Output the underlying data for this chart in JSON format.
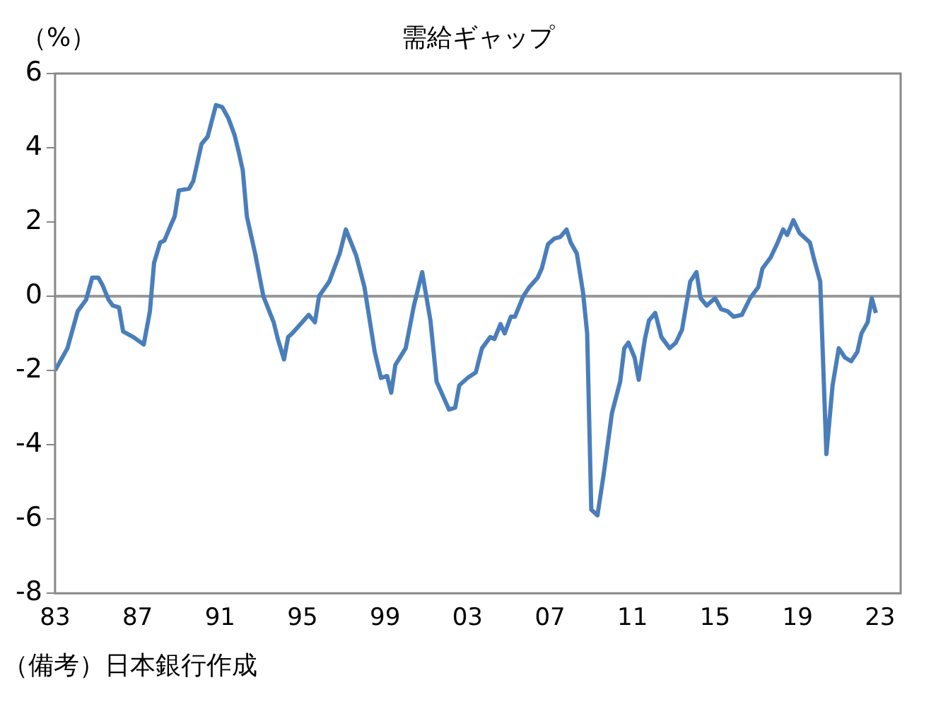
{
  "chart_data": {
    "type": "line",
    "title": "需給ギャップ",
    "ylabel": "（%）",
    "annotations": [
      "（備考）日本銀行作成"
    ],
    "xlim": [
      1983,
      2024
    ],
    "xticks": [
      {
        "value": 1983,
        "label": "83"
      },
      {
        "value": 1987,
        "label": "87"
      },
      {
        "value": 1991,
        "label": "91"
      },
      {
        "value": 1995,
        "label": "95"
      },
      {
        "value": 1999,
        "label": "99"
      },
      {
        "value": 2003,
        "label": "03"
      },
      {
        "value": 2007,
        "label": "07"
      },
      {
        "value": 2011,
        "label": "11"
      },
      {
        "value": 2015,
        "label": "15"
      },
      {
        "value": 2019,
        "label": "19"
      },
      {
        "value": 2023,
        "label": "23"
      }
    ],
    "ylim": [
      -8,
      6
    ],
    "yticks": [
      -8,
      -6,
      -4,
      -2,
      0,
      2,
      4,
      6
    ],
    "grid": false,
    "legend": false,
    "marker": "none",
    "line_style": "solid",
    "ref_lines": [
      {
        "axis": "y",
        "value": 0,
        "color": "#999999"
      }
    ],
    "series": [
      {
        "color": "#4a7ebb",
        "x": [
          1983.0,
          1983.6,
          1984.1,
          1984.5,
          1984.8,
          1985.1,
          1985.3,
          1985.6,
          1985.8,
          1986.1,
          1986.3,
          1986.8,
          1987.3,
          1987.6,
          1987.8,
          1988.1,
          1988.3,
          1988.6,
          1988.8,
          1989.0,
          1989.5,
          1989.7,
          1990.1,
          1990.4,
          1990.8,
          1991.1,
          1991.4,
          1991.7,
          1991.9,
          1992.1,
          1992.3,
          1992.7,
          1993.1,
          1993.6,
          1993.8,
          1994.1,
          1994.3,
          1994.5,
          1994.9,
          1995.3,
          1995.6,
          1995.8,
          1996.3,
          1996.8,
          1997.1,
          1997.6,
          1998.0,
          1998.5,
          1998.8,
          1999.1,
          1999.3,
          1999.5,
          2000.0,
          2000.4,
          2000.8,
          2001.2,
          2001.5,
          2001.9,
          2002.1,
          2002.4,
          2002.6,
          2003.0,
          2003.4,
          2003.7,
          2004.1,
          2004.3,
          2004.6,
          2004.8,
          2005.1,
          2005.3,
          2005.7,
          2006.0,
          2006.4,
          2006.6,
          2006.9,
          2007.2,
          2007.5,
          2007.8,
          2008.0,
          2008.3,
          2008.6,
          2008.8,
          2009.0,
          2009.3,
          2009.6,
          2010.0,
          2010.4,
          2010.6,
          2010.8,
          2011.1,
          2011.3,
          2011.6,
          2011.8,
          2012.1,
          2012.4,
          2012.8,
          2013.1,
          2013.4,
          2013.8,
          2014.1,
          2014.3,
          2014.6,
          2015.0,
          2015.3,
          2015.6,
          2015.9,
          2016.3,
          2016.7,
          2017.1,
          2017.3,
          2017.7,
          2018.0,
          2018.3,
          2018.5,
          2018.8,
          2019.1,
          2019.6,
          2019.8,
          2020.1,
          2020.4,
          2020.7,
          2021.0,
          2021.3,
          2021.6,
          2021.9,
          2022.1,
          2022.4,
          2022.6,
          2022.8
        ],
        "values": [
          -2.0,
          -1.4,
          -0.4,
          -0.1,
          0.5,
          0.5,
          0.3,
          -0.1,
          -0.25,
          -0.3,
          -0.95,
          -1.1,
          -1.3,
          -0.4,
          0.9,
          1.45,
          1.5,
          1.9,
          2.15,
          2.85,
          2.9,
          3.1,
          4.1,
          4.3,
          5.15,
          5.1,
          4.8,
          4.35,
          3.9,
          3.4,
          2.15,
          1.15,
          0,
          -0.7,
          -1.15,
          -1.7,
          -1.1,
          -1.0,
          -0.75,
          -0.5,
          -0.7,
          0,
          0.4,
          1.15,
          1.8,
          1.1,
          0.25,
          -1.5,
          -2.2,
          -2.15,
          -2.6,
          -1.85,
          -1.4,
          -0.25,
          0.65,
          -0.65,
          -2.3,
          -2.8,
          -3.05,
          -3.0,
          -2.4,
          -2.2,
          -2.05,
          -1.4,
          -1.1,
          -1.15,
          -0.75,
          -1.0,
          -0.55,
          -0.55,
          0,
          0.25,
          0.5,
          0.75,
          1.4,
          1.55,
          1.6,
          1.8,
          1.45,
          1.15,
          0.1,
          -1.0,
          -5.75,
          -5.9,
          -4.8,
          -3.15,
          -2.3,
          -1.4,
          -1.25,
          -1.65,
          -2.25,
          -1.15,
          -0.65,
          -0.45,
          -1.1,
          -1.4,
          -1.25,
          -0.9,
          0.4,
          0.65,
          -0.05,
          -0.25,
          -0.05,
          -0.35,
          -0.4,
          -0.55,
          -0.5,
          -0.05,
          0.25,
          0.75,
          1.05,
          1.4,
          1.8,
          1.65,
          2.05,
          1.7,
          1.45,
          1.0,
          0.4,
          -4.25,
          -2.4,
          -1.4,
          -1.65,
          -1.75,
          -1.5,
          -1.0,
          -0.7,
          -0.05,
          -0.45
        ]
      }
    ]
  }
}
